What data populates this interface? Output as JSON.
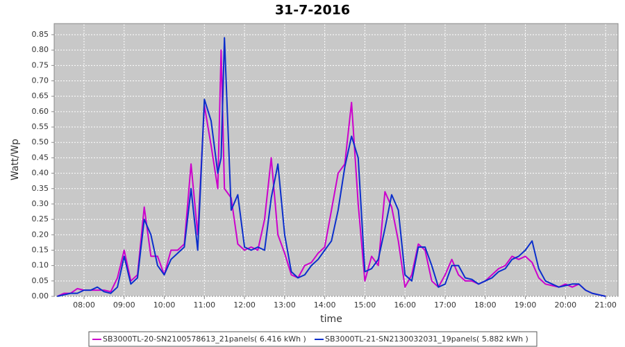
{
  "chart_data": {
    "type": "line",
    "title": "31-7-2016",
    "x_label": "time",
    "y_label": "Watt/Wp",
    "x": [
      7.333,
      7.5,
      7.667,
      7.833,
      8,
      8.167,
      8.333,
      8.5,
      8.667,
      8.833,
      9,
      9.167,
      9.333,
      9.5,
      9.667,
      9.833,
      10,
      10.167,
      10.333,
      10.5,
      10.667,
      10.833,
      11,
      11.167,
      11.333,
      11.417,
      11.5,
      11.667,
      11.833,
      12,
      12.167,
      12.333,
      12.5,
      12.667,
      12.833,
      13,
      13.167,
      13.333,
      13.5,
      13.667,
      13.833,
      14,
      14.167,
      14.333,
      14.5,
      14.667,
      14.833,
      15,
      15.167,
      15.333,
      15.5,
      15.667,
      15.833,
      16,
      16.167,
      16.333,
      16.5,
      16.667,
      16.833,
      17,
      17.167,
      17.333,
      17.5,
      17.667,
      17.833,
      18,
      18.167,
      18.333,
      18.5,
      18.667,
      18.833,
      19,
      19.167,
      19.333,
      19.5,
      19.667,
      19.833,
      20,
      20.167,
      20.333,
      20.5,
      20.667,
      20.833,
      21
    ],
    "series": [
      {
        "name": "SB3000TL-20-SN2100578613_21panels( 6.416 kWh )",
        "color": "#cc00cc",
        "values": [
          0,
          0.01,
          0.01,
          0.025,
          0.02,
          0.02,
          0.02,
          0.02,
          0.015,
          0.06,
          0.15,
          0.05,
          0.07,
          0.29,
          0.13,
          0.13,
          0.07,
          0.15,
          0.15,
          0.17,
          0.43,
          0.2,
          0.62,
          0.49,
          0.35,
          0.8,
          0.35,
          0.32,
          0.17,
          0.15,
          0.16,
          0.15,
          0.25,
          0.45,
          0.2,
          0.14,
          0.07,
          0.06,
          0.1,
          0.11,
          0.14,
          0.16,
          0.28,
          0.4,
          0.43,
          0.63,
          0.3,
          0.05,
          0.13,
          0.1,
          0.34,
          0.29,
          0.18,
          0.03,
          0.07,
          0.17,
          0.15,
          0.05,
          0.03,
          0.07,
          0.12,
          0.07,
          0.05,
          0.05,
          0.04,
          0.05,
          0.07,
          0.09,
          0.1,
          0.13,
          0.12,
          0.13,
          0.11,
          0.06,
          0.04,
          0.035,
          0.03,
          0.04,
          0.03,
          0.04,
          0.02,
          0.01,
          0.005,
          0
        ]
      },
      {
        "name": "SB3000TL-21-SN2130032031_19panels( 5.882 kWh )",
        "color": "#0a2ecc",
        "values": [
          0,
          0.005,
          0.01,
          0.01,
          0.02,
          0.02,
          0.03,
          0.015,
          0.01,
          0.03,
          0.13,
          0.04,
          0.06,
          0.25,
          0.2,
          0.1,
          0.07,
          0.12,
          0.14,
          0.16,
          0.35,
          0.15,
          0.64,
          0.57,
          0.4,
          0.45,
          0.84,
          0.28,
          0.33,
          0.16,
          0.15,
          0.16,
          0.15,
          0.32,
          0.43,
          0.2,
          0.08,
          0.06,
          0.07,
          0.1,
          0.12,
          0.15,
          0.18,
          0.28,
          0.42,
          0.52,
          0.45,
          0.08,
          0.09,
          0.12,
          0.22,
          0.33,
          0.28,
          0.07,
          0.05,
          0.16,
          0.16,
          0.1,
          0.03,
          0.04,
          0.1,
          0.1,
          0.06,
          0.055,
          0.04,
          0.05,
          0.06,
          0.08,
          0.09,
          0.12,
          0.13,
          0.15,
          0.18,
          0.09,
          0.05,
          0.04,
          0.03,
          0.035,
          0.04,
          0.04,
          0.02,
          0.01,
          0.005,
          0
        ]
      }
    ],
    "xlim": [
      7.256,
      21.31
    ],
    "xticks": [
      {
        "value": 8,
        "label": "08:00"
      },
      {
        "value": 9,
        "label": "09:00"
      },
      {
        "value": 10,
        "label": "10:00"
      },
      {
        "value": 11,
        "label": "11:00"
      },
      {
        "value": 12,
        "label": "12:00"
      },
      {
        "value": 13,
        "label": "13:00"
      },
      {
        "value": 14,
        "label": "14:00"
      },
      {
        "value": 15,
        "label": "15:00"
      },
      {
        "value": 16,
        "label": "16:00"
      },
      {
        "value": 17,
        "label": "17:00"
      },
      {
        "value": 18,
        "label": "18:00"
      },
      {
        "value": 19,
        "label": "19:00"
      },
      {
        "value": 20,
        "label": "20:00"
      },
      {
        "value": 21,
        "label": "21:00"
      }
    ],
    "ylim": [
      0,
      0.886
    ],
    "yticks": [
      {
        "value": 0,
        "label": "0.00"
      },
      {
        "value": 0.05,
        "label": "0.05"
      },
      {
        "value": 0.1,
        "label": "0.10"
      },
      {
        "value": 0.15,
        "label": "0.15"
      },
      {
        "value": 0.2,
        "label": "0.20"
      },
      {
        "value": 0.25,
        "label": "0.25"
      },
      {
        "value": 0.3,
        "label": "0.30"
      },
      {
        "value": 0.35,
        "label": "0.35"
      },
      {
        "value": 0.4,
        "label": "0.40"
      },
      {
        "value": 0.45,
        "label": "0.45"
      },
      {
        "value": 0.5,
        "label": "0.50"
      },
      {
        "value": 0.55,
        "label": "0.55"
      },
      {
        "value": 0.6,
        "label": "0.60"
      },
      {
        "value": 0.65,
        "label": "0.65"
      },
      {
        "value": 0.7,
        "label": "0.70"
      },
      {
        "value": 0.75,
        "label": "0.75"
      },
      {
        "value": 0.8,
        "label": "0.80"
      },
      {
        "value": 0.85,
        "label": "0.85"
      }
    ],
    "grid": true,
    "legend": "bottom"
  }
}
